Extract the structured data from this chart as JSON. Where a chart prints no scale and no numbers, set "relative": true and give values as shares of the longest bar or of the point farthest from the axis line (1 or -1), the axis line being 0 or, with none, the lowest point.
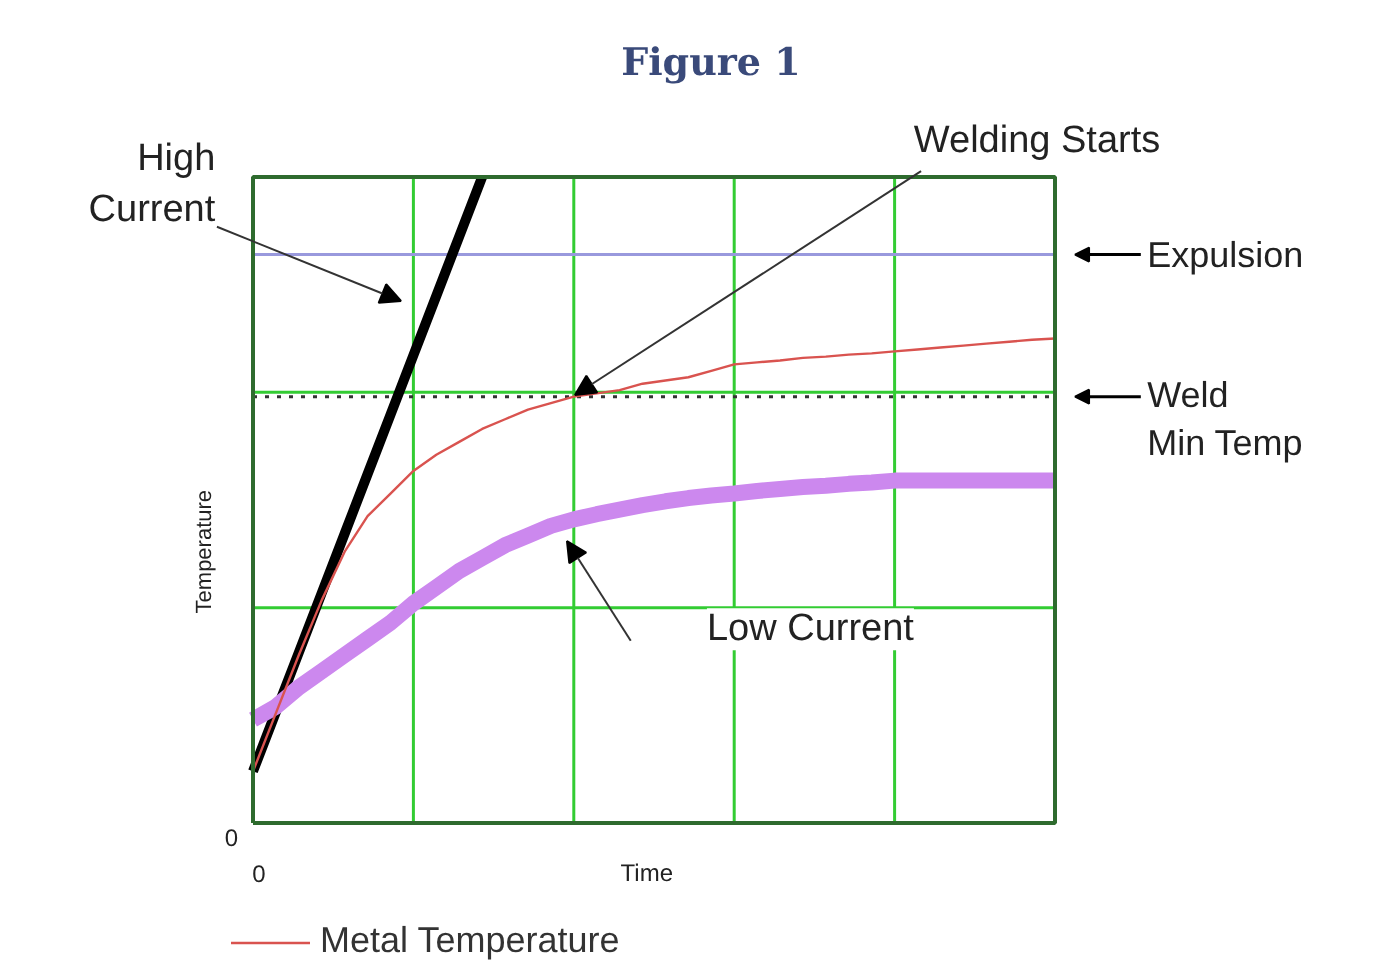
{
  "chart_data": {
    "type": "line",
    "title": "Figure 1",
    "xlabel": "Time",
    "ylabel": "Temperature",
    "relative": true,
    "grid": true,
    "legend": "bottom left",
    "line_style": "solid",
    "categories": [
      null,
      null,
      null,
      null,
      null,
      null,
      null,
      null,
      null,
      null,
      null,
      null,
      null,
      null,
      null,
      null,
      null,
      null,
      null,
      null,
      null,
      null,
      null,
      null,
      null,
      null,
      null,
      null,
      null,
      null,
      null,
      null,
      null,
      null,
      null,
      null
    ],
    "series": [
      {
        "color": "#000000",
        "values": [
          0.08,
          0.172,
          0.264,
          0.356,
          0.448,
          0.54,
          0.632,
          0.724,
          0.816,
          0.908,
          1.0,
          null,
          null,
          null,
          null,
          null,
          null,
          null,
          null,
          null,
          null,
          null,
          null,
          null,
          null,
          null,
          null,
          null,
          null,
          null,
          null,
          null,
          null,
          null,
          null,
          null
        ]
      },
      {
        "name": "Metal Temperature",
        "color": "#d9534f",
        "values": [
          0.08,
          0.17,
          0.26,
          0.345,
          0.42,
          0.475,
          0.51,
          0.545,
          0.57,
          0.59,
          0.61,
          0.625,
          0.64,
          0.65,
          0.66,
          0.665,
          0.67,
          0.68,
          0.685,
          0.69,
          0.7,
          0.71,
          0.713,
          0.716,
          0.72,
          0.722,
          0.725,
          0.727,
          0.73,
          0.733,
          0.736,
          0.739,
          0.742,
          0.745,
          0.748,
          0.75
        ]
      },
      {
        "color": "#cc88ee",
        "values": [
          0.16,
          0.18,
          0.21,
          0.235,
          0.26,
          0.285,
          0.31,
          0.34,
          0.365,
          0.39,
          0.41,
          0.43,
          0.445,
          0.46,
          0.47,
          0.478,
          0.485,
          0.492,
          0.498,
          0.503,
          0.507,
          0.51,
          0.514,
          0.517,
          0.52,
          0.522,
          0.525,
          0.527,
          0.53,
          0.53,
          0.53,
          0.53,
          0.53,
          0.53,
          0.53,
          0.53
        ]
      }
    ],
    "ref_lines": [
      {
        "axis": "y",
        "value": 0.88,
        "label": "Expulsion",
        "color": "#9999dd",
        "line_style": "solid"
      },
      {
        "axis": "y",
        "value": 0.66,
        "label": "Weld\nMin Temp",
        "color": "#333333",
        "line_style": "dotted"
      }
    ],
    "annotations": [
      "High\nCurrent",
      "Welding Starts",
      "Low Current",
      "0",
      "0"
    ]
  }
}
